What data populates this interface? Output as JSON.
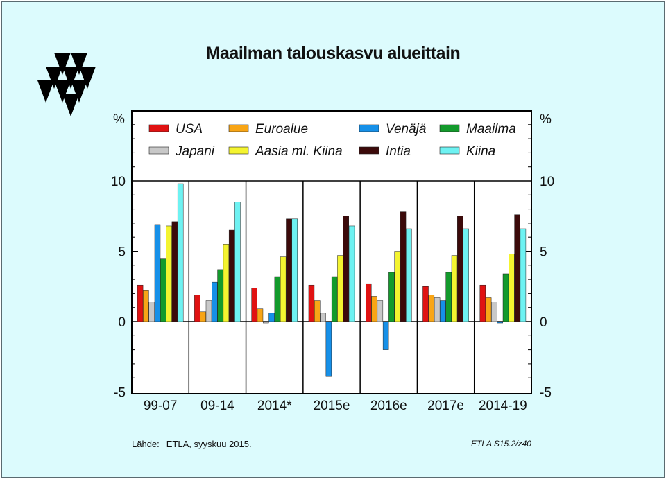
{
  "header": {
    "title": "Maailman talouskasvu alueittain",
    "logo_icon": "etla-triangles-logo-icon"
  },
  "footer": {
    "source_label": "Lähde:",
    "source_text": "ETLA, syyskuu 2015.",
    "code": "ETLA S15.2/z40"
  },
  "chart_data": {
    "type": "bar",
    "title": "Maailman talouskasvu alueittain",
    "y_unit_left": "%",
    "y_unit_right": "%",
    "ylim": [
      -5,
      15
    ],
    "yticks": [
      -5,
      0,
      5,
      10
    ],
    "legend_position": "top-inside",
    "categories": [
      "99-07",
      "09-14",
      "2014*",
      "2015e",
      "2016e",
      "2017e",
      "2014-19"
    ],
    "series": [
      {
        "name": "USA",
        "color": "#e01212",
        "values": [
          2.6,
          1.9,
          2.4,
          2.6,
          2.7,
          2.5,
          2.6
        ]
      },
      {
        "name": "Euroalue",
        "color": "#f8a516",
        "values": [
          2.2,
          0.7,
          0.9,
          1.5,
          1.8,
          1.9,
          1.7
        ]
      },
      {
        "name": "Japani",
        "color": "#c8c8c8",
        "values": [
          1.4,
          1.5,
          -0.1,
          0.6,
          1.5,
          1.7,
          1.4
        ]
      },
      {
        "name": "Venäjä",
        "color": "#1690e8",
        "values": [
          6.9,
          2.8,
          0.6,
          -3.9,
          -2.0,
          1.5,
          -0.1
        ]
      },
      {
        "name": "Maailma",
        "color": "#139a2c",
        "values": [
          4.5,
          3.7,
          3.2,
          3.2,
          3.5,
          3.5,
          3.4
        ]
      },
      {
        "name": "Aasia ml. Kiina",
        "color": "#f4f430",
        "values": [
          6.8,
          5.5,
          4.6,
          4.7,
          5.0,
          4.7,
          4.8
        ]
      },
      {
        "name": "Intia",
        "color": "#3c0a0a",
        "values": [
          7.1,
          6.5,
          7.3,
          7.5,
          7.8,
          7.5,
          7.6
        ]
      },
      {
        "name": "Kiina",
        "color": "#6ef2f2",
        "values": [
          9.8,
          8.5,
          7.3,
          6.8,
          6.6,
          6.6,
          6.6
        ]
      }
    ],
    "legend_order": [
      "USA",
      "Euroalue",
      "Venäjä",
      "Maailma",
      "Japani",
      "Aasia ml. Kiina",
      "Intia",
      "Kiina"
    ]
  }
}
